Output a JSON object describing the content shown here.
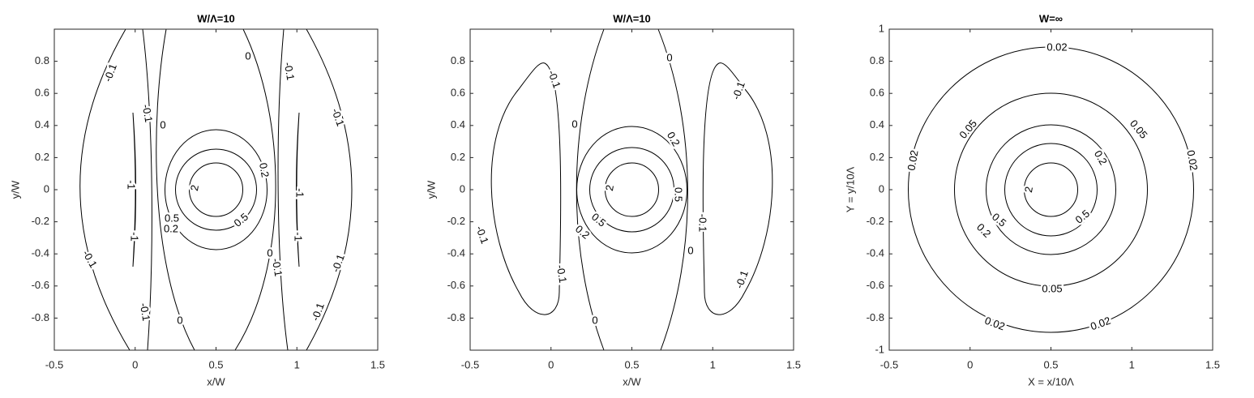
{
  "chart_data": [
    {
      "type": "contour",
      "title": "W/Λ=10",
      "xlabel": "x/W",
      "ylabel": "y/W",
      "xlim": [
        -0.5,
        1.5
      ],
      "ylim": [
        -1,
        1
      ],
      "xticks": [
        -0.5,
        0,
        0.5,
        1,
        1.5
      ],
      "yticks": [
        -0.8,
        -0.6,
        -0.4,
        -0.2,
        0,
        0.2,
        0.4,
        0.6,
        0.8
      ],
      "levels": [
        -1,
        -0.1,
        0,
        0.2,
        0.5,
        2
      ],
      "contour_labels": [
        -0.1,
        -0.1,
        0,
        0,
        -0.1,
        -0.1,
        0.2,
        -1,
        -1,
        2,
        0.5,
        0.2,
        0.5,
        -1,
        -1,
        0,
        -0.1,
        -0.1,
        -0.1,
        0,
        -0.1,
        -0.1
      ]
    },
    {
      "type": "contour",
      "title": "W/Λ=10",
      "xlabel": "x/W",
      "ylabel": "y/W",
      "xlim": [
        -0.5,
        1.5
      ],
      "ylim": [
        -1,
        1
      ],
      "xticks": [
        -0.5,
        0,
        0.5,
        1,
        1.5
      ],
      "yticks": [
        -0.8,
        -0.6,
        -0.4,
        -0.2,
        0,
        0.2,
        0.4,
        0.6,
        0.8
      ],
      "levels": [
        -0.1,
        0,
        0.2,
        0.5,
        2
      ],
      "contour_labels": [
        -0.1,
        0,
        -0.1,
        0,
        0.2,
        2,
        0.5,
        0.5,
        0.2,
        -0.1,
        -0.1,
        0,
        -0.1,
        -0.1,
        0
      ]
    },
    {
      "type": "contour",
      "title": "W=∞",
      "xlabel": "X = x/10Λ",
      "ylabel": "Y = y/10Λ",
      "xlim": [
        -0.5,
        1.5
      ],
      "ylim": [
        -1,
        1
      ],
      "xticks": [
        -0.5,
        0,
        0.5,
        1,
        1.5
      ],
      "yticks": [
        -1,
        -0.8,
        -0.6,
        -0.4,
        -0.2,
        0,
        0.2,
        0.4,
        0.6,
        0.8,
        1
      ],
      "levels": [
        0.02,
        0.05,
        0.2,
        0.5,
        2
      ],
      "contour_labels": [
        0.02,
        0.05,
        0.05,
        0.2,
        0.02,
        0.02,
        2,
        0.5,
        0.5,
        0.2,
        0.05,
        0.02,
        0.02
      ]
    }
  ]
}
